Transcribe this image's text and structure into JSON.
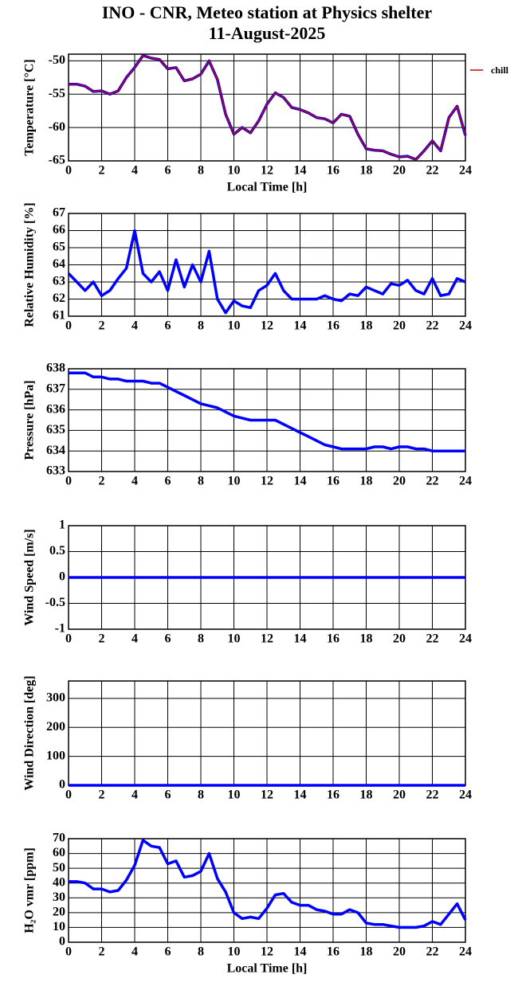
{
  "chart_data": [
    {
      "type": "line",
      "title": "INO - CNR, Meteo station at Physics shelter",
      "subtitle": "11-August-2025",
      "ylabel": "Temperature [°C]",
      "xlabel": "Local Time [h]",
      "grid": true,
      "legend": "right",
      "x": [
        0,
        0.5,
        1,
        1.5,
        2,
        2.5,
        3,
        3.5,
        4,
        4.5,
        5,
        5.5,
        6,
        6.5,
        7,
        7.5,
        8,
        8.5,
        9,
        9.5,
        10,
        10.5,
        11,
        11.5,
        12,
        12.5,
        13,
        13.5,
        14,
        14.5,
        15,
        15.5,
        16,
        16.5,
        17,
        17.5,
        18,
        18.5,
        19,
        19.5,
        20,
        20.5,
        21,
        21.5,
        22,
        22.5,
        23,
        23.5,
        24
      ],
      "xlim": [
        0,
        24
      ],
      "xticks": [
        0,
        2,
        4,
        6,
        8,
        10,
        12,
        14,
        16,
        18,
        20,
        22,
        24
      ],
      "ylim": [
        -65,
        -49
      ],
      "yticks": [
        -65,
        -60,
        -55,
        -50
      ],
      "series": [
        {
          "color": "#0000ff",
          "values": [
            -53.5,
            -53.5,
            -53.8,
            -54.6,
            -54.5,
            -55,
            -54.5,
            -52.5,
            -51,
            -49.2,
            -49.6,
            -49.8,
            -51.2,
            -51,
            -53,
            -52.7,
            -52,
            -50,
            -52.8,
            -58,
            -61,
            -60,
            -60.8,
            -59,
            -56.5,
            -54.8,
            -55.5,
            -57,
            -57.3,
            -57.8,
            -58.5,
            -58.7,
            -59.3,
            -58,
            -58.3,
            -61,
            -63.2,
            -63.4,
            -63.5,
            -64,
            -64.4,
            -64.3,
            -64.8,
            -63.5,
            -62,
            -63.5,
            -58.5,
            -56.8,
            -61.2
          ]
        },
        {
          "name": "chill",
          "color": "#cc0000",
          "values": [
            -53.5,
            -53.5,
            -53.8,
            -54.6,
            -54.5,
            -55,
            -54.5,
            -52.5,
            -51,
            -49.2,
            -49.6,
            -49.8,
            -51.2,
            -51,
            -53,
            -52.7,
            -52,
            -50,
            -52.8,
            -58,
            -61,
            -60,
            -60.8,
            -59,
            -56.5,
            -54.8,
            -55.5,
            -57,
            -57.3,
            -57.8,
            -58.5,
            -58.7,
            -59.3,
            -58,
            -58.3,
            -61,
            -63.2,
            -63.4,
            -63.5,
            -64,
            -64.4,
            -64.3,
            -64.8,
            -63.5,
            -62,
            -63.5,
            -58.5,
            -56.8,
            -61.2
          ]
        }
      ]
    },
    {
      "type": "line",
      "ylabel": "Relative Humidity [%]",
      "grid": true,
      "x": [
        0,
        0.5,
        1,
        1.5,
        2,
        2.5,
        3,
        3.5,
        4,
        4.5,
        5,
        5.5,
        6,
        6.5,
        7,
        7.5,
        8,
        8.5,
        9,
        9.5,
        10,
        10.5,
        11,
        11.5,
        12,
        12.5,
        13,
        13.5,
        14,
        14.5,
        15,
        15.5,
        16,
        16.5,
        17,
        17.5,
        18,
        18.5,
        19,
        19.5,
        20,
        20.5,
        21,
        21.5,
        22,
        22.5,
        23,
        23.5,
        24
      ],
      "xlim": [
        0,
        24
      ],
      "xticks": [
        0,
        2,
        4,
        6,
        8,
        10,
        12,
        14,
        16,
        18,
        20,
        22,
        24
      ],
      "ylim": [
        61,
        67
      ],
      "yticks": [
        61,
        62,
        63,
        64,
        65,
        66,
        67
      ],
      "series": [
        {
          "color": "#0000ff",
          "values": [
            63.5,
            63,
            62.5,
            63,
            62.2,
            62.5,
            63.2,
            63.8,
            66,
            63.5,
            63,
            63.6,
            62.5,
            64.3,
            62.7,
            64,
            63,
            64.8,
            62,
            61.2,
            61.9,
            61.6,
            61.5,
            62.5,
            62.8,
            63.5,
            62.5,
            62,
            62,
            62,
            62,
            62.2,
            62,
            61.9,
            62.3,
            62.2,
            62.7,
            62.5,
            62.3,
            62.9,
            62.8,
            63.1,
            62.5,
            62.3,
            63.2,
            62.2,
            62.3,
            63.2,
            63
          ]
        }
      ]
    },
    {
      "type": "line",
      "ylabel": "Pressure [hPa]",
      "grid": true,
      "x": [
        0,
        0.5,
        1,
        1.5,
        2,
        2.5,
        3,
        3.5,
        4,
        4.5,
        5,
        5.5,
        6,
        6.5,
        7,
        7.5,
        8,
        8.5,
        9,
        9.5,
        10,
        10.5,
        11,
        11.5,
        12,
        12.5,
        13,
        13.5,
        14,
        14.5,
        15,
        15.5,
        16,
        16.5,
        17,
        17.5,
        18,
        18.5,
        19,
        19.5,
        20,
        20.5,
        21,
        21.5,
        22,
        22.5,
        23,
        23.5,
        24
      ],
      "xlim": [
        0,
        24
      ],
      "xticks": [
        0,
        2,
        4,
        6,
        8,
        10,
        12,
        14,
        16,
        18,
        20,
        22,
        24
      ],
      "ylim": [
        633,
        638
      ],
      "yticks": [
        633,
        634,
        635,
        636,
        637,
        638
      ],
      "series": [
        {
          "color": "#0000ff",
          "values": [
            637.8,
            637.8,
            637.8,
            637.6,
            637.6,
            637.5,
            637.5,
            637.4,
            637.4,
            637.4,
            637.3,
            637.3,
            637.1,
            636.9,
            636.7,
            636.5,
            636.3,
            636.2,
            636.1,
            635.9,
            635.7,
            635.6,
            635.5,
            635.5,
            635.5,
            635.5,
            635.3,
            635.1,
            634.9,
            634.7,
            634.5,
            634.3,
            634.2,
            634.1,
            634.1,
            634.1,
            634.1,
            634.2,
            634.2,
            634.1,
            634.2,
            634.2,
            634.1,
            634.1,
            634,
            634,
            634,
            634,
            634
          ]
        }
      ]
    },
    {
      "type": "line",
      "ylabel": "Wind Speed [m/s]",
      "grid": true,
      "x": [
        0,
        24
      ],
      "xlim": [
        0,
        24
      ],
      "xticks": [
        0,
        2,
        4,
        6,
        8,
        10,
        12,
        14,
        16,
        18,
        20,
        22,
        24
      ],
      "ylim": [
        -1,
        1
      ],
      "yticks": [
        -1,
        -0.5,
        0,
        0.5,
        1
      ],
      "series": [
        {
          "color": "#0000ff",
          "values": [
            0,
            0
          ]
        }
      ]
    },
    {
      "type": "line",
      "ylabel": "Wind Direction [deg]",
      "grid": true,
      "x": [
        0,
        24
      ],
      "xlim": [
        0,
        24
      ],
      "xticks": [
        0,
        2,
        4,
        6,
        8,
        10,
        12,
        14,
        16,
        18,
        20,
        22,
        24
      ],
      "ylim": [
        0,
        360
      ],
      "yticks": [
        0,
        100,
        200,
        300
      ],
      "series": [
        {
          "color": "#0000ff",
          "values": [
            0,
            0
          ]
        }
      ]
    },
    {
      "type": "line",
      "ylabel": "H₂O vmr [ppm]",
      "xlabel": "Local Time [h]",
      "grid": true,
      "x": [
        0,
        0.5,
        1,
        1.5,
        2,
        2.5,
        3,
        3.5,
        4,
        4.5,
        5,
        5.5,
        6,
        6.5,
        7,
        7.5,
        8,
        8.5,
        9,
        9.5,
        10,
        10.5,
        11,
        11.5,
        12,
        12.5,
        13,
        13.5,
        14,
        14.5,
        15,
        15.5,
        16,
        16.5,
        17,
        17.5,
        18,
        18.5,
        19,
        19.5,
        20,
        20.5,
        21,
        21.5,
        22,
        22.5,
        23,
        23.5,
        24
      ],
      "xlim": [
        0,
        24
      ],
      "xticks": [
        0,
        2,
        4,
        6,
        8,
        10,
        12,
        14,
        16,
        18,
        20,
        22,
        24
      ],
      "ylim": [
        0,
        70
      ],
      "yticks": [
        0,
        10,
        20,
        30,
        40,
        50,
        60,
        70
      ],
      "series": [
        {
          "color": "#0000ff",
          "values": [
            41,
            41,
            40,
            36,
            36,
            34,
            35,
            42,
            52,
            69,
            65,
            64,
            53,
            55,
            44,
            45,
            48,
            60,
            43,
            34,
            20,
            16,
            17,
            16,
            23,
            32,
            33,
            27,
            25,
            25,
            22,
            21,
            19,
            19,
            22,
            20,
            13,
            12,
            12,
            11,
            10,
            10,
            10,
            11,
            14,
            12,
            19,
            26,
            15
          ]
        }
      ]
    }
  ]
}
